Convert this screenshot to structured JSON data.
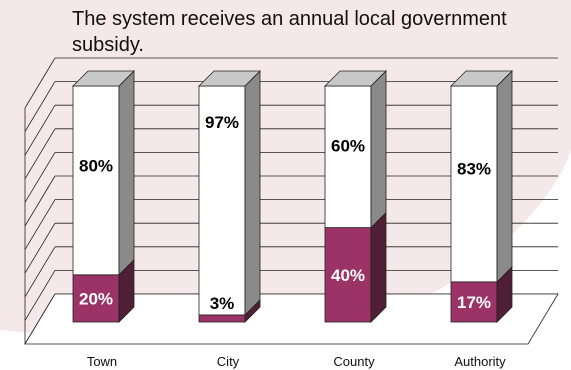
{
  "colors": {
    "yes": "#9b3366",
    "yes_side": "#4f1f35",
    "yes_top": "#c97a9e",
    "no": "#ffffff",
    "no_side": "#8a8a8a",
    "no_top": "#c8c8c8",
    "blob": "#f5e8eb"
  },
  "chart_data": {
    "type": "bar",
    "stacked": true,
    "three_d": true,
    "title": "The system receives an annual local government subsidy.",
    "categories": [
      "Town",
      "City",
      "County",
      "Authority"
    ],
    "series": [
      {
        "values": [
          20,
          3,
          40,
          17
        ],
        "labels": [
          "20%",
          "3%",
          "40%",
          "17%"
        ]
      },
      {
        "values": [
          80,
          97,
          60,
          83
        ],
        "labels": [
          "80%",
          "97%",
          "60%",
          "83%"
        ]
      }
    ],
    "ylim": [
      0,
      100
    ],
    "grid": true,
    "legend": "none"
  }
}
